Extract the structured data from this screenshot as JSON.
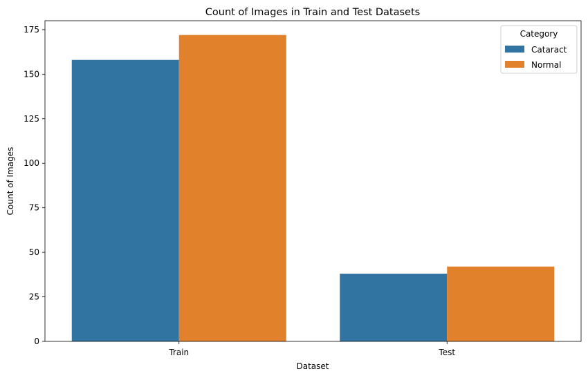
{
  "chart_data": {
    "type": "bar",
    "title": "Count of Images in Train and Test Datasets",
    "xlabel": "Dataset",
    "ylabel": "Count of Images",
    "categories": [
      "Train",
      "Test"
    ],
    "series": [
      {
        "name": "Cataract",
        "values": [
          158,
          38
        ],
        "color": "#3274a1"
      },
      {
        "name": "Normal",
        "values": [
          172,
          42
        ],
        "color": "#e1812c"
      }
    ],
    "ylim": [
      0,
      180
    ],
    "yticks": [
      0,
      25,
      50,
      75,
      100,
      125,
      150,
      175
    ],
    "legend": {
      "title": "Category",
      "placement": "top-right"
    },
    "grid": false
  }
}
